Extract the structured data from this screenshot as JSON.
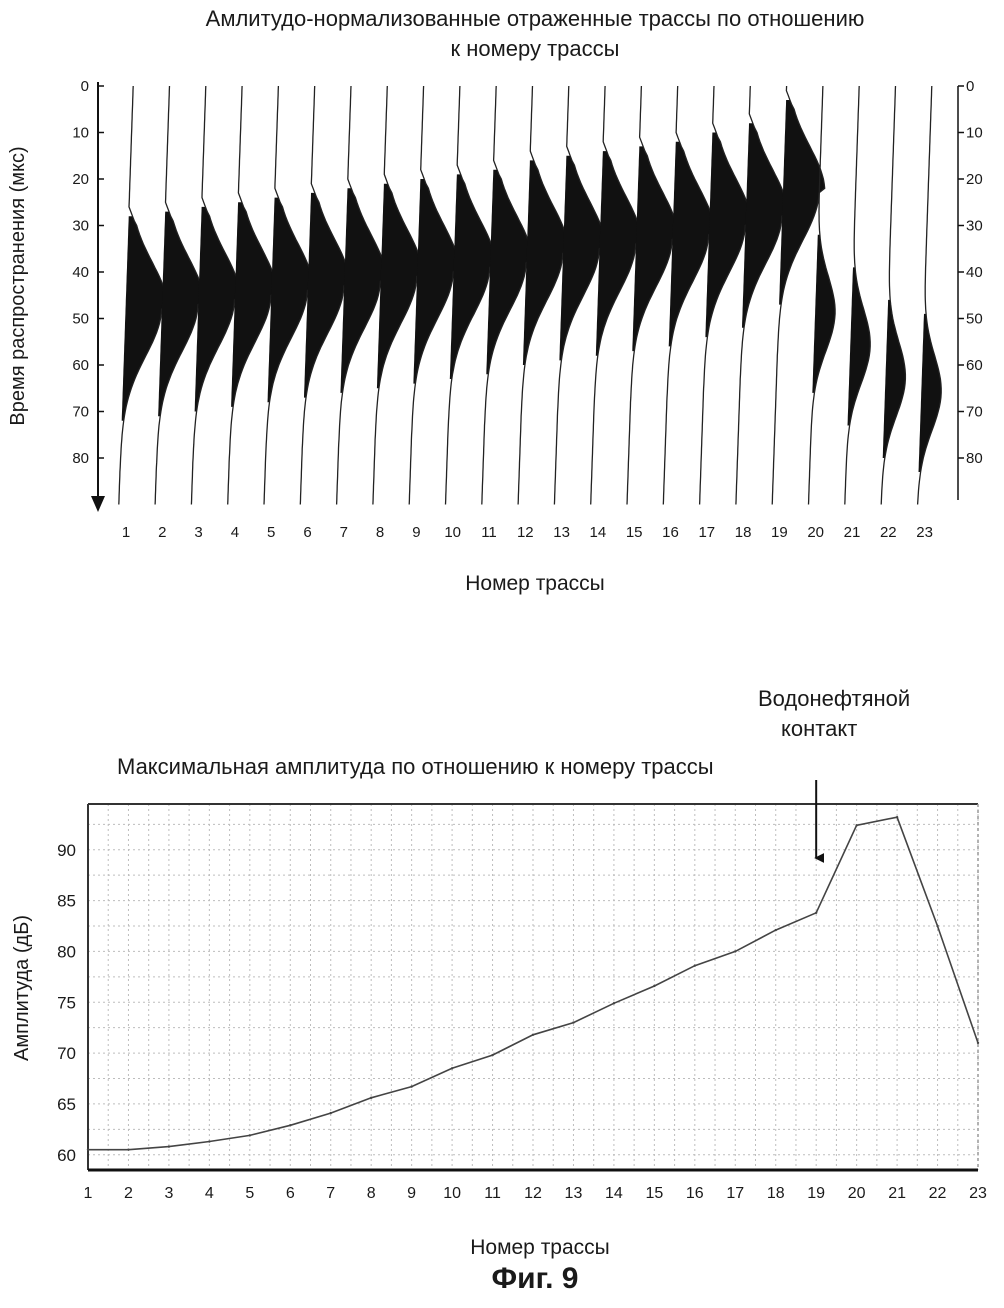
{
  "chart_data": [
    {
      "type": "wiggle",
      "title": "Амлитудо-нормализованные отраженные трассы по отношению к номеру трассы",
      "title_line1": "Амлитудо-нормализованные отраженные трассы по отношению",
      "title_line2": "к номеру трассы",
      "xlabel": "Номер трассы",
      "ylabel": "Время распространения (мкс)",
      "categories": [
        "1",
        "2",
        "3",
        "4",
        "5",
        "6",
        "7",
        "8",
        "9",
        "10",
        "11",
        "12",
        "13",
        "14",
        "15",
        "16",
        "17",
        "18",
        "19",
        "20",
        "21",
        "22",
        "23"
      ],
      "yticks": [
        0,
        10,
        20,
        30,
        40,
        50,
        60,
        70,
        80
      ],
      "ytick_labels": [
        "0",
        "10",
        "20",
        "30",
        "40",
        "50",
        "60",
        "70",
        "80"
      ],
      "ylim": [
        0,
        90
      ],
      "y_inverted": true,
      "peak_time": [
        48,
        47,
        46,
        45,
        44,
        43,
        42,
        41,
        40,
        39,
        38,
        36,
        35,
        34,
        33,
        32,
        30,
        28,
        23,
        49,
        56,
        63,
        66
      ],
      "wavelet_polarity": [
        "positive",
        "positive",
        "positive",
        "positive",
        "positive",
        "positive",
        "positive",
        "positive",
        "positive",
        "positive",
        "positive",
        "positive",
        "positive",
        "positive",
        "positive",
        "positive",
        "positive",
        "positive",
        "positive",
        "negative",
        "negative",
        "negative",
        "negative"
      ],
      "fill": "#111111"
    },
    {
      "type": "line",
      "title": "Максимальная амплитуда по отношению к номеру трассы",
      "xlabel": "Номер трассы",
      "ylabel": "Амплитуда (дБ)",
      "categories": [
        "1",
        "2",
        "3",
        "4",
        "5",
        "6",
        "7",
        "8",
        "9",
        "10",
        "11",
        "12",
        "13",
        "14",
        "15",
        "16",
        "17",
        "18",
        "19",
        "20",
        "21",
        "22",
        "23"
      ],
      "x": [
        1,
        2,
        3,
        4,
        5,
        6,
        7,
        8,
        9,
        10,
        11,
        12,
        13,
        14,
        15,
        16,
        17,
        18,
        19,
        20,
        21,
        22,
        23
      ],
      "series": [
        {
          "values": [
            60.5,
            60.5,
            60.8,
            61.3,
            61.9,
            62.9,
            64.1,
            65.6,
            66.7,
            68.5,
            69.8,
            71.8,
            73.0,
            74.9,
            76.6,
            78.6,
            80.0,
            82.1,
            83.8,
            92.4,
            93.2,
            82.5,
            71.0
          ]
        }
      ],
      "yticks": [
        60,
        65,
        70,
        75,
        80,
        85,
        90
      ],
      "ylim": [
        58.5,
        94.5
      ],
      "grid": true,
      "annotation": {
        "line1": "Водонефтяной",
        "line2": "контакт",
        "points_to_x": 19
      },
      "line_color": "#444444"
    }
  ],
  "caption": "Фиг. 9"
}
